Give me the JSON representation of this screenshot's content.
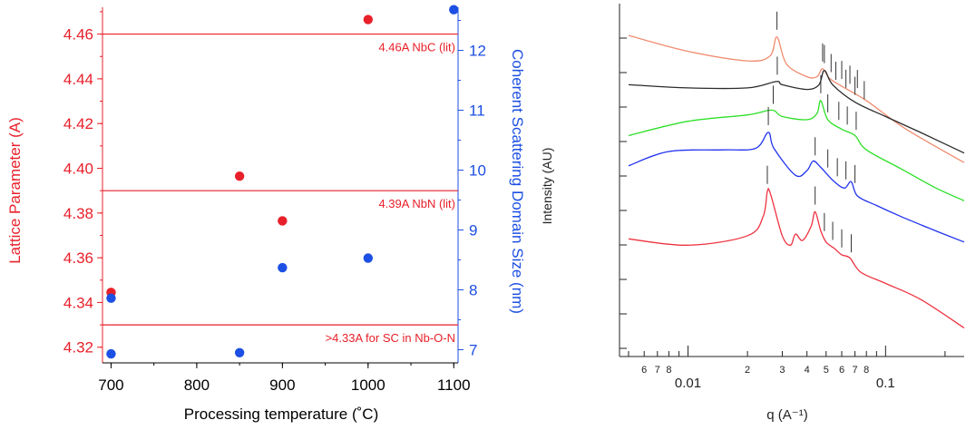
{
  "chart_data": [
    {
      "type": "scatter",
      "xlabel": "Processing temperature (˚C)",
      "ylabel": "Lattice Parameter (A)",
      "y2label": "Coherent Scattering Domain Size (nm)",
      "xlim": [
        690,
        1105
      ],
      "xticks": [
        700,
        800,
        900,
        1000,
        1100
      ],
      "ylim": [
        4.313,
        4.472
      ],
      "yticks": [
        4.32,
        4.34,
        4.36,
        4.38,
        4.4,
        4.42,
        4.44,
        4.46
      ],
      "y2lim": [
        6.78,
        12.72
      ],
      "y2ticks": [
        7,
        8,
        9,
        10,
        11,
        12
      ],
      "colors": {
        "left": "#e8202a",
        "right": "#1c4fe3"
      },
      "series": [
        {
          "axis": "left",
          "color": "#e8202a",
          "points": [
            [
              700,
              4.3445
            ],
            [
              850,
              4.3965
            ],
            [
              900,
              4.3765
            ],
            [
              1000,
              4.4665
            ]
          ]
        },
        {
          "axis": "right",
          "color": "#1c4fe3",
          "points": [
            [
              700,
              6.93
            ],
            [
              700,
              7.86
            ],
            [
              850,
              6.95
            ],
            [
              900,
              8.37
            ],
            [
              1000,
              8.53
            ],
            [
              1100,
              12.68
            ]
          ]
        }
      ],
      "reference_lines": [
        {
          "y": 4.46,
          "label": "4.46A NbC (lit)"
        },
        {
          "y": 4.39,
          "label": "4.39A NbN (lit)"
        },
        {
          "y": 4.33,
          "label": ">4.33A for SC in Nb-O-N"
        }
      ]
    },
    {
      "type": "line",
      "xlabel": "q (A⁻¹)",
      "ylabel": "Intensity (AU)",
      "xscale": "log",
      "xlim": [
        0.0045,
        0.25
      ],
      "major_tick_labels": [
        {
          "value": 0.01,
          "label": "0.01"
        },
        {
          "value": 0.1,
          "label": "0.1"
        }
      ],
      "minor_tick_labels": [
        {
          "value": 0.006,
          "label": "6"
        },
        {
          "value": 0.007,
          "label": "7"
        },
        {
          "value": 0.008,
          "label": "8"
        },
        {
          "value": 0.02,
          "label": "2"
        },
        {
          "value": 0.03,
          "label": "3"
        },
        {
          "value": 0.04,
          "label": "4"
        },
        {
          "value": 0.05,
          "label": "5"
        },
        {
          "value": 0.06,
          "label": "6"
        },
        {
          "value": 0.07,
          "label": "7"
        },
        {
          "value": 0.08,
          "label": "8"
        }
      ],
      "y_tick_count": 10,
      "series": [
        {
          "color": "#f08c70",
          "values": [
            [
              0.005,
              12.6
            ],
            [
              0.01,
              12.1
            ],
            [
              0.02,
              11.8
            ],
            [
              0.026,
              11.95
            ],
            [
              0.0282,
              12.55
            ],
            [
              0.0315,
              11.7
            ],
            [
              0.04,
              11.3
            ],
            [
              0.045,
              11.3
            ],
            [
              0.048,
              11.55
            ],
            [
              0.052,
              11.25
            ],
            [
              0.06,
              11.0
            ],
            [
              0.08,
              10.55
            ],
            [
              0.12,
              9.75
            ],
            [
              0.18,
              9.1
            ],
            [
              0.25,
              8.6
            ]
          ],
          "peak_markers": [
            0.0282,
            0.048,
            0.053,
            0.06,
            0.066,
            0.072
          ]
        },
        {
          "color": "#2c2c2c",
          "values": [
            [
              0.005,
              11.05
            ],
            [
              0.01,
              10.95
            ],
            [
              0.02,
              10.95
            ],
            [
              0.028,
              11.15
            ],
            [
              0.03,
              11.05
            ],
            [
              0.04,
              10.9
            ],
            [
              0.046,
              11.05
            ],
            [
              0.049,
              11.5
            ],
            [
              0.054,
              11.05
            ],
            [
              0.07,
              10.5
            ],
            [
              0.1,
              10.05
            ],
            [
              0.15,
              9.55
            ],
            [
              0.25,
              8.9
            ]
          ],
          "peak_markers": [
            0.0283,
            0.049,
            0.056,
            0.063,
            0.07,
            0.078
          ]
        },
        {
          "color": "#2de028",
          "values": [
            [
              0.005,
              9.45
            ],
            [
              0.01,
              9.9
            ],
            [
              0.02,
              10.1
            ],
            [
              0.0265,
              10.25
            ],
            [
              0.03,
              10.05
            ],
            [
              0.04,
              9.95
            ],
            [
              0.045,
              10.15
            ],
            [
              0.047,
              10.55
            ],
            [
              0.051,
              9.95
            ],
            [
              0.06,
              9.65
            ],
            [
              0.07,
              9.45
            ],
            [
              0.08,
              9.0
            ],
            [
              0.12,
              8.4
            ],
            [
              0.18,
              7.8
            ],
            [
              0.25,
              7.4
            ]
          ],
          "peak_markers": [
            0.027,
            0.047,
            0.051,
            0.058,
            0.064,
            0.071
          ]
        },
        {
          "color": "#2233ee",
          "values": [
            [
              0.005,
              8.5
            ],
            [
              0.008,
              8.95
            ],
            [
              0.015,
              9.0
            ],
            [
              0.022,
              9.05
            ],
            [
              0.0255,
              9.55
            ],
            [
              0.0272,
              9.05
            ],
            [
              0.035,
              8.2
            ],
            [
              0.04,
              8.35
            ],
            [
              0.043,
              8.65
            ],
            [
              0.047,
              8.45
            ],
            [
              0.055,
              8.0
            ],
            [
              0.062,
              7.8
            ],
            [
              0.067,
              8.0
            ],
            [
              0.072,
              7.55
            ],
            [
              0.09,
              7.25
            ],
            [
              0.12,
              6.9
            ],
            [
              0.18,
              6.45
            ],
            [
              0.25,
              6.1
            ]
          ],
          "peak_markers": [
            0.0255,
            0.044,
            0.051,
            0.057,
            0.063,
            0.07
          ]
        },
        {
          "color": "#ee3340",
          "values": [
            [
              0.005,
              6.2
            ],
            [
              0.01,
              6.0
            ],
            [
              0.02,
              6.3
            ],
            [
              0.024,
              6.9
            ],
            [
              0.0252,
              7.7
            ],
            [
              0.0262,
              7.6
            ],
            [
              0.03,
              6.3
            ],
            [
              0.033,
              6.0
            ],
            [
              0.035,
              6.35
            ],
            [
              0.038,
              6.15
            ],
            [
              0.042,
              6.6
            ],
            [
              0.044,
              7.05
            ],
            [
              0.047,
              6.45
            ],
            [
              0.05,
              6.1
            ],
            [
              0.055,
              5.9
            ],
            [
              0.06,
              5.7
            ],
            [
              0.066,
              5.6
            ],
            [
              0.075,
              5.15
            ],
            [
              0.1,
              4.8
            ],
            [
              0.15,
              4.3
            ],
            [
              0.25,
              3.4
            ]
          ],
          "peak_markers": [
            0.0252,
            0.044,
            0.049,
            0.054,
            0.06,
            0.067
          ]
        }
      ]
    }
  ]
}
